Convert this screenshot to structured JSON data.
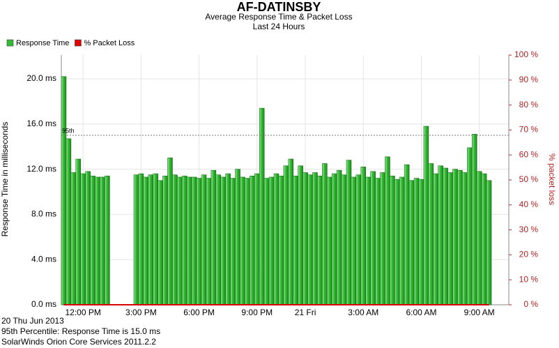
{
  "chart_data": {
    "type": "bar",
    "title": "AF-DATINSBY",
    "subtitle": "Average Response Time & Packet Loss",
    "period": "Last 24 Hours",
    "y_label": "Response Time in milliseconds",
    "y2_label": "% packet loss",
    "categories": [
      null,
      null,
      null,
      null,
      "12:00 PM",
      null,
      null,
      null,
      null,
      null,
      null,
      null,
      null,
      null,
      null,
      null,
      "3:00 PM",
      null,
      null,
      null,
      null,
      null,
      null,
      null,
      null,
      null,
      null,
      null,
      "6:00 PM",
      null,
      null,
      null,
      null,
      null,
      null,
      null,
      null,
      null,
      null,
      null,
      "9:00 PM",
      null,
      null,
      null,
      null,
      null,
      null,
      null,
      null,
      null,
      "21 Fri",
      null,
      null,
      null,
      null,
      null,
      null,
      null,
      null,
      null,
      null,
      null,
      "3:00 AM",
      null,
      null,
      null,
      null,
      null,
      null,
      null,
      null,
      null,
      null,
      null,
      "6:00 AM",
      null,
      null,
      null,
      null,
      null,
      null,
      null,
      null,
      null,
      null,
      null,
      "9:00 AM",
      null,
      null
    ],
    "series": [
      {
        "name": "Response Time",
        "color": "#33bb33",
        "values": [
          20.2,
          14.7,
          11.7,
          12.9,
          11.6,
          11.8,
          11.4,
          11.3,
          11.3,
          11.4,
          null,
          null,
          null,
          null,
          null,
          11.5,
          11.6,
          11.3,
          11.5,
          11.6,
          11.0,
          11.4,
          13.0,
          11.5,
          11.3,
          11.4,
          11.3,
          11.3,
          11.2,
          11.5,
          11.2,
          11.9,
          11.5,
          11.3,
          11.6,
          11.2,
          12.0,
          11.3,
          11.2,
          11.4,
          11.6,
          17.4,
          11.2,
          11.3,
          11.6,
          11.4,
          12.3,
          12.9,
          11.4,
          12.3,
          11.7,
          11.5,
          11.7,
          11.4,
          12.5,
          11.3,
          11.6,
          11.9,
          11.5,
          12.8,
          11.3,
          11.5,
          12.2,
          11.3,
          11.8,
          11.2,
          11.7,
          13.1,
          11.4,
          11.1,
          11.3,
          12.4,
          11.0,
          11.2,
          11.1,
          15.8,
          12.5,
          11.6,
          12.3,
          12.1,
          11.7,
          12.0,
          11.9,
          11.7,
          13.9,
          15.1,
          11.8,
          11.6,
          11.0
        ]
      },
      {
        "name": "% Packet Loss",
        "color": "#dd0000",
        "axis": "y2",
        "values": [
          0,
          0,
          0,
          0,
          0,
          0,
          0,
          0,
          0,
          0,
          0,
          0,
          0,
          0,
          0,
          0,
          0,
          0,
          0,
          0,
          0,
          0,
          0,
          0,
          0,
          0,
          0,
          0,
          0,
          0,
          0,
          0,
          0,
          0,
          0,
          0,
          0,
          0,
          0,
          0,
          0,
          0,
          0,
          0,
          0,
          0,
          0,
          0,
          0,
          0,
          0,
          0,
          0,
          0,
          0,
          0,
          0,
          0,
          0,
          0,
          0,
          0,
          0,
          0,
          0,
          0,
          0,
          0,
          0,
          0,
          0,
          0,
          0,
          0,
          0,
          0,
          0,
          0,
          0,
          0,
          0,
          0,
          0,
          0,
          0,
          0,
          0,
          0,
          0
        ]
      }
    ],
    "ylim": [
      0,
      22.1
    ],
    "yticks": [
      {
        "value": 0,
        "label": "0.0 ms"
      },
      {
        "value": 4,
        "label": "4.0 ms"
      },
      {
        "value": 8,
        "label": "8.0 ms"
      },
      {
        "value": 12,
        "label": "12.0 ms"
      },
      {
        "value": 16,
        "label": "16.0 ms"
      },
      {
        "value": 20,
        "label": "20.0 ms"
      }
    ],
    "y2lim": [
      0,
      100
    ],
    "y2ticks": [
      {
        "value": 0,
        "label": "0 %"
      },
      {
        "value": 10,
        "label": "10 %"
      },
      {
        "value": 20,
        "label": "20 %"
      },
      {
        "value": 30,
        "label": "30 %"
      },
      {
        "value": 40,
        "label": "40 %"
      },
      {
        "value": 50,
        "label": "50 %"
      },
      {
        "value": 60,
        "label": "60 %"
      },
      {
        "value": 70,
        "label": "70 %"
      },
      {
        "value": 80,
        "label": "80 %"
      },
      {
        "value": 90,
        "label": "90 %"
      },
      {
        "value": 100,
        "label": "100 %"
      }
    ],
    "percentile_line": {
      "label": "95th",
      "value": 15.0
    },
    "grid": true,
    "legend": "top-left",
    "footer": [
      "20 Thu Jun 2013",
      "95th Percentile: Response Time is 15.0  ms",
      "SolarWinds Orion Core Services 2011.2.2"
    ]
  }
}
